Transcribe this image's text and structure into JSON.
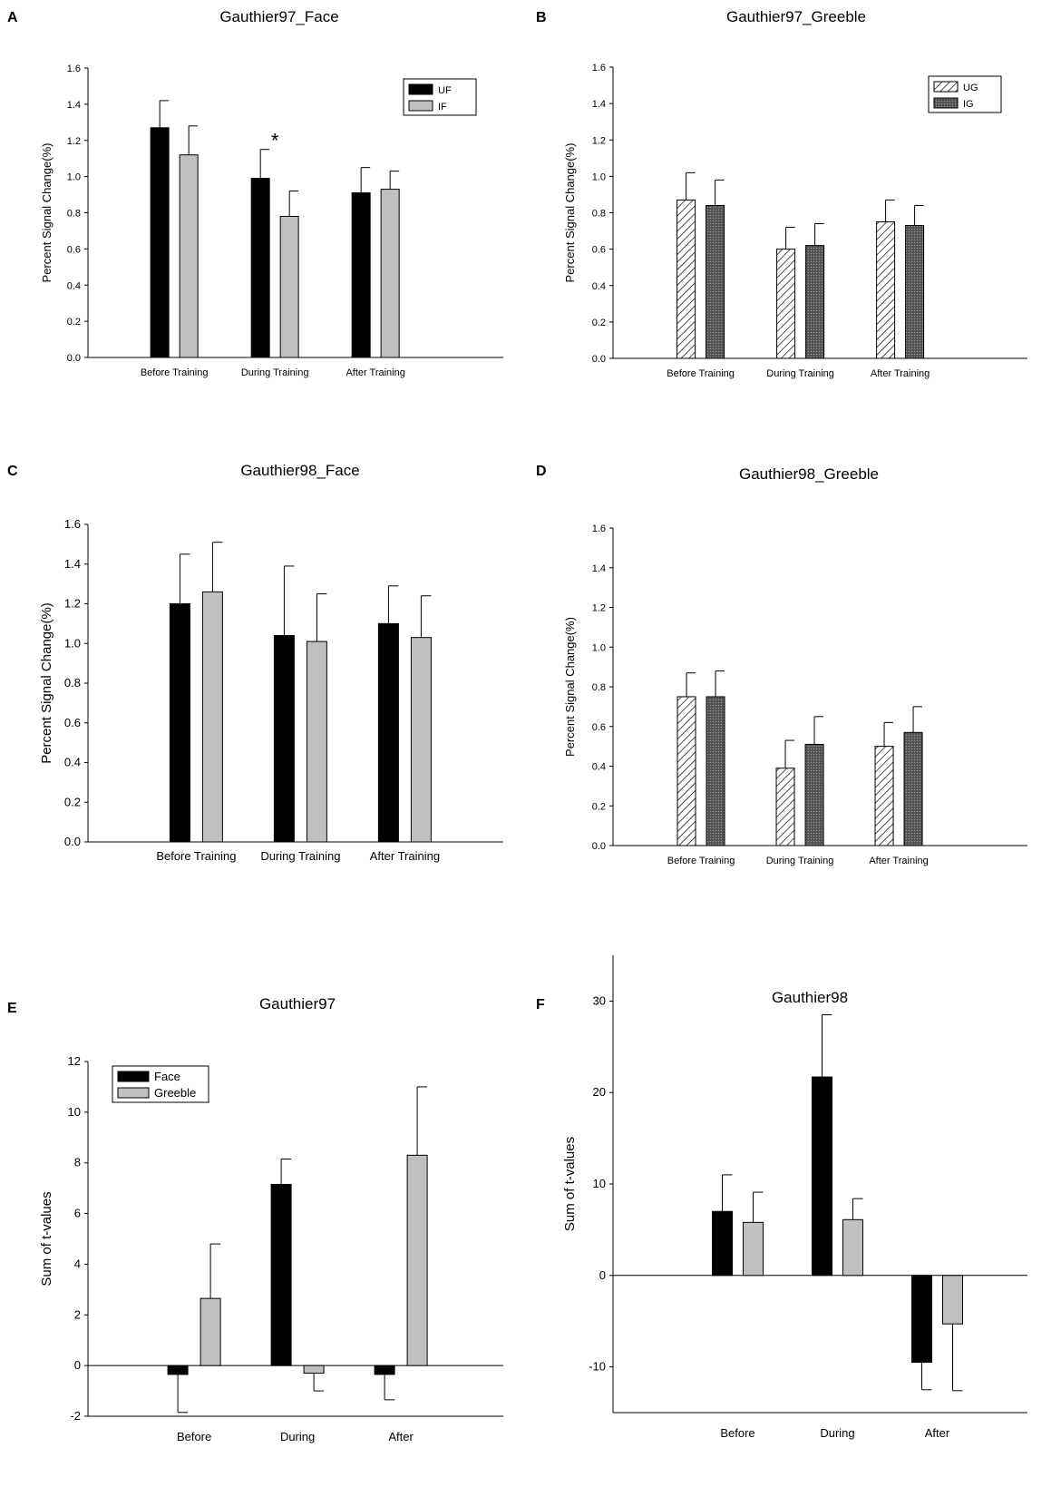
{
  "figure": {
    "panels": [
      "A",
      "B",
      "C",
      "D",
      "E",
      "F"
    ]
  },
  "colors": {
    "black": "#000000",
    "gray": "#c0c0c0",
    "hatch_fill": "#ffffff",
    "dots_fill": "#5a5a5a"
  },
  "chart_data": [
    {
      "panel": "A",
      "type": "bar",
      "title": "Gauthier97_Face",
      "xlabel": "",
      "ylabel": "Percent Signal Change(%)",
      "categories": [
        "Before Training",
        "During Training",
        "After Training"
      ],
      "ylim": [
        0.0,
        1.6
      ],
      "yticks": [
        "0.0",
        "0.2",
        "0.4",
        "0.6",
        "0.8",
        "1.0",
        "1.2",
        "1.4",
        "1.6"
      ],
      "legend": "top-right",
      "annotation": "*",
      "series": [
        {
          "name": "UF",
          "style": "black",
          "values": [
            1.27,
            0.99,
            0.91
          ],
          "errors": [
            0.15,
            0.16,
            0.14
          ]
        },
        {
          "name": "IF",
          "style": "gray",
          "values": [
            1.12,
            0.78,
            0.93
          ],
          "errors": [
            0.16,
            0.14,
            0.1
          ]
        }
      ]
    },
    {
      "panel": "B",
      "type": "bar",
      "title": "Gauthier97_Greeble",
      "xlabel": "",
      "ylabel": "Percent Signal Change(%)",
      "categories": [
        "Before Training",
        "During Training",
        "After Training"
      ],
      "ylim": [
        0.0,
        1.6
      ],
      "yticks": [
        "0.0",
        "0.2",
        "0.4",
        "0.6",
        "0.8",
        "1.0",
        "1.2",
        "1.4",
        "1.6"
      ],
      "legend": "top-right",
      "series": [
        {
          "name": "UG",
          "style": "hatch",
          "values": [
            0.87,
            0.6,
            0.75
          ],
          "errors": [
            0.15,
            0.12,
            0.12
          ]
        },
        {
          "name": "IG",
          "style": "dots",
          "values": [
            0.84,
            0.62,
            0.73
          ],
          "errors": [
            0.14,
            0.12,
            0.11
          ]
        }
      ]
    },
    {
      "panel": "C",
      "type": "bar",
      "title": "Gauthier98_Face",
      "xlabel": "",
      "ylabel": "Percent Signal Change(%)",
      "categories": [
        "Before Training",
        "During Training",
        "After Training"
      ],
      "ylim": [
        0.0,
        1.6
      ],
      "yticks": [
        "0.0",
        "0.2",
        "0.4",
        "0.6",
        "0.8",
        "1.0",
        "1.2",
        "1.4",
        "1.6"
      ],
      "series": [
        {
          "name": "UF",
          "style": "black",
          "values": [
            1.2,
            1.04,
            1.1
          ],
          "errors": [
            0.25,
            0.35,
            0.19
          ]
        },
        {
          "name": "IF",
          "style": "gray",
          "values": [
            1.26,
            1.01,
            1.03
          ],
          "errors": [
            0.25,
            0.24,
            0.21
          ]
        }
      ]
    },
    {
      "panel": "D",
      "type": "bar",
      "title": "Gauthier98_Greeble",
      "xlabel": "",
      "ylabel": "Percent Signal Change(%)",
      "categories": [
        "Before Training",
        "During Training",
        "After Training"
      ],
      "ylim": [
        0.0,
        1.6
      ],
      "yticks": [
        "0.0",
        "0.2",
        "0.4",
        "0.6",
        "0.8",
        "1.0",
        "1.2",
        "1.4",
        "1.6"
      ],
      "series": [
        {
          "name": "UG",
          "style": "hatch",
          "values": [
            0.75,
            0.39,
            0.5
          ],
          "errors": [
            0.12,
            0.14,
            0.12
          ]
        },
        {
          "name": "IG",
          "style": "dots",
          "values": [
            0.75,
            0.51,
            0.57
          ],
          "errors": [
            0.13,
            0.14,
            0.13
          ]
        }
      ]
    },
    {
      "panel": "E",
      "type": "bar",
      "title": "Gauthier97",
      "xlabel": "",
      "ylabel": "Sum of t-values",
      "categories": [
        "Before",
        "During",
        "After"
      ],
      "ylim": [
        -2,
        12
      ],
      "yticks": [
        "-2",
        "0",
        "2",
        "4",
        "6",
        "8",
        "10",
        "12"
      ],
      "legend": "top-left",
      "series": [
        {
          "name": "Face",
          "style": "black",
          "values": [
            -0.35,
            7.15,
            -0.35
          ],
          "errors": [
            1.5,
            1.0,
            1.0
          ]
        },
        {
          "name": "Greeble",
          "style": "gray",
          "values": [
            2.65,
            -0.3,
            8.3
          ],
          "errors": [
            2.15,
            0.7,
            2.7
          ]
        }
      ]
    },
    {
      "panel": "F",
      "type": "bar",
      "title": "Gauthier98",
      "xlabel": "",
      "ylabel": "Sum of t-values",
      "categories": [
        "Before",
        "During",
        "After"
      ],
      "ylim": [
        -15,
        35
      ],
      "yticks": [
        "-10",
        "0",
        "10",
        "20",
        "30"
      ],
      "series": [
        {
          "name": "Face",
          "style": "black",
          "values": [
            7.0,
            21.7,
            -9.5
          ],
          "errors": [
            4.0,
            6.8,
            3.0
          ]
        },
        {
          "name": "Greeble",
          "style": "gray",
          "values": [
            5.8,
            6.1,
            -5.3
          ],
          "errors": [
            3.3,
            2.3,
            7.3
          ]
        }
      ]
    }
  ]
}
